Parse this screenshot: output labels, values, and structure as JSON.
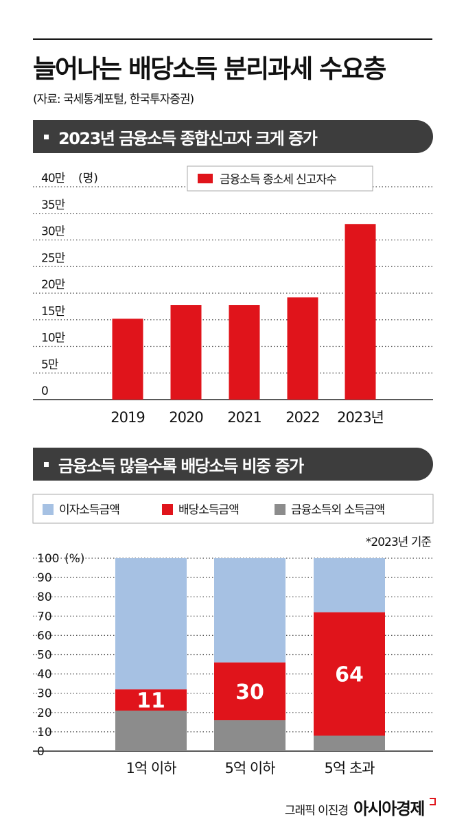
{
  "header": {
    "title": "늘어나는 배당소득 분리과세 수요층",
    "source": "(자료: 국세통계포털, 한국투자증권)"
  },
  "sections": [
    {
      "label": "2023년 금융소득 종합신고자 크게 증가"
    },
    {
      "label": "금융소득 많을수록 배당소득 비중 증가"
    }
  ],
  "footer": {
    "credit": "그래픽 이진경",
    "brand": "아시아경제"
  },
  "colors": {
    "red": "#e0141b",
    "blue": "#a6c1e3",
    "gray": "#8c8c8c",
    "dark": "#3d3d3d"
  },
  "chart_data": [
    {
      "type": "bar",
      "categories": [
        "2019",
        "2020",
        "2021",
        "2022",
        "2023년"
      ],
      "series": [
        {
          "name": "금융소득 종소세 신고자수",
          "values": [
            15.2,
            17.8,
            17.8,
            19.2,
            33.0
          ]
        }
      ],
      "ylim": [
        0,
        40
      ],
      "yticks": [
        0,
        5,
        10,
        15,
        20,
        25,
        30,
        35,
        40
      ],
      "ytick_labels": [
        "0",
        "5만",
        "10만",
        "15만",
        "20만",
        "25만",
        "30만",
        "35만",
        "40만"
      ],
      "yunit": "(명)",
      "grid": true,
      "legend": "top-right"
    },
    {
      "type": "bar",
      "stacked": true,
      "categories": [
        "1억 이하",
        "5억 이하",
        "5억 초과"
      ],
      "series": [
        {
          "name": "금융소득외 소득금액",
          "values": [
            21,
            16,
            8
          ]
        },
        {
          "name": "배당소득금액",
          "values": [
            11,
            30,
            64
          ]
        },
        {
          "name": "이자소득금액",
          "values": [
            68,
            54,
            28
          ]
        }
      ],
      "data_labels": [
        "11",
        "30",
        "64"
      ],
      "ylim": [
        0,
        100
      ],
      "yticks": [
        0,
        10,
        20,
        30,
        40,
        50,
        60,
        70,
        80,
        90,
        100
      ],
      "ytick_labels": [
        "0",
        "10",
        "20",
        "30",
        "40",
        "50",
        "60",
        "70",
        "80",
        "90",
        "100"
      ],
      "yunit": "(%)",
      "note": "*2023년 기준",
      "grid": true,
      "legend": "top"
    }
  ]
}
